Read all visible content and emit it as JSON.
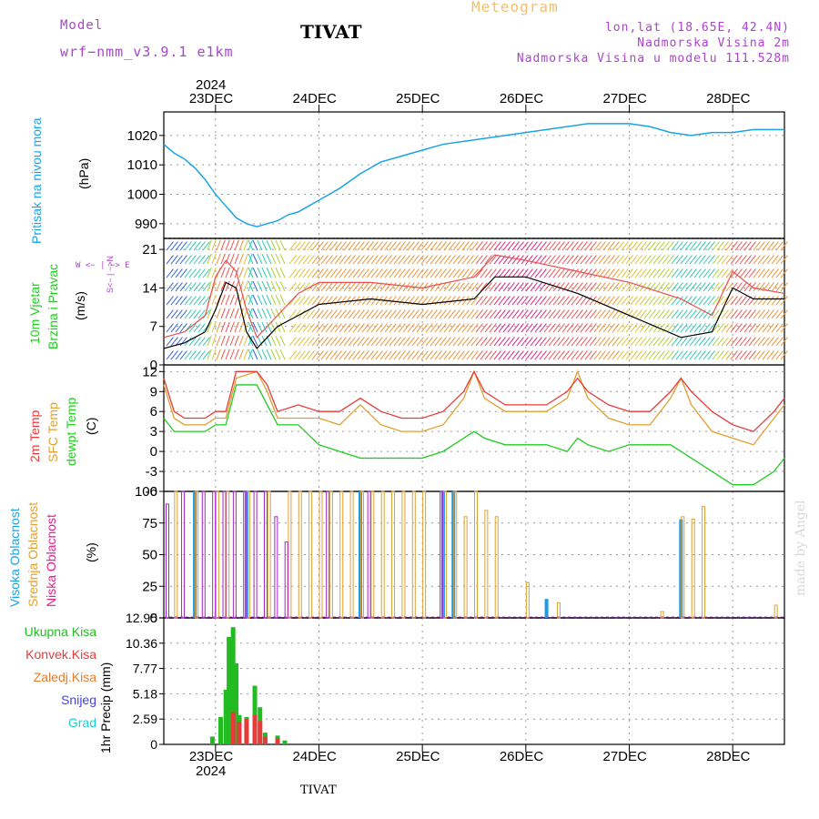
{
  "header": {
    "model_label": "Model",
    "model_name": "wrf−nmm_v3.9.1  e1km",
    "station": "TIVAT",
    "meteogram_label": "Meteogram",
    "coords": "lon,lat (18.65E, 42.4N)",
    "height": "Nadmorska Visina 2m",
    "model_height": "Nadmorska Visina u modelu 111.528m"
  },
  "timeaxis": {
    "year_top": "2024",
    "year_bottom": "2024",
    "days": [
      "23DEC",
      "24DEC",
      "25DEC",
      "26DEC",
      "27DEC",
      "28DEC"
    ],
    "start_day_offset": -0.5,
    "end_day_offset": 5.5
  },
  "footer": {
    "station": "TIVAT"
  },
  "watermark": "made by Angel",
  "colors": {
    "pressure": "#1aa3e8",
    "t2m": "#e83a3a",
    "tsfc": "#e0a030",
    "dewpt": "#22cc22",
    "high_cloud": "#1a9be8",
    "mid_cloud": "#e0a030",
    "low_cloud": "#aa22cc",
    "precip_total": "#22bb22",
    "precip_conv": "#e83a3a",
    "precip_frozen": "#e87b2a",
    "precip_snow": "#4444dd",
    "precip_hail": "#22cccc",
    "panel_label_violet": "#aa44cc"
  },
  "panels": {
    "pressure": {
      "label": "Pritisak na nivou mora",
      "unit": "(hPa)"
    },
    "wind": {
      "label1": "10m Vjetar",
      "label2": "Brzina i Pravac",
      "unit": "(m/s)",
      "compass": "W <− | −> E",
      "compass_vert": "S<− | −>N"
    },
    "temp": {
      "label1": "2m Temp",
      "label2": "SFC Temp",
      "label3": "dewpt Temp",
      "unit": "(C)"
    },
    "cloud": {
      "label1": "Visoka Oblacnost",
      "label2": "Srednja Oblacnost",
      "label3": "Niska Oblacnost",
      "unit": "(%)"
    },
    "precip": {
      "unit": "1hr Precip (mm)",
      "legend": [
        "Ukupna Kisa",
        "Konvek.Kisa",
        "Zaledj.Kisa",
        "Snijeg",
        "Grad"
      ]
    }
  },
  "chart_data": [
    {
      "type": "line",
      "title": "Pritisak na nivou mora",
      "ylabel": "(hPa)",
      "ylim": [
        985,
        1028
      ],
      "yticks": [
        990,
        1000,
        1010,
        1020
      ],
      "grid": true,
      "series": [
        {
          "name": "Pritisak na nivou mora",
          "x": [
            -0.5,
            -0.4,
            -0.3,
            -0.2,
            -0.1,
            0,
            0.1,
            0.2,
            0.3,
            0.4,
            0.5,
            0.6,
            0.7,
            0.8,
            0.9,
            1.0,
            1.2,
            1.4,
            1.6,
            1.8,
            2.0,
            2.2,
            2.4,
            2.6,
            2.8,
            3.0,
            3.2,
            3.4,
            3.6,
            3.8,
            4.0,
            4.2,
            4.4,
            4.6,
            4.8,
            5.0,
            5.2,
            5.5
          ],
          "y": [
            1017,
            1014,
            1012,
            1009,
            1005,
            1000,
            996,
            992,
            990,
            989,
            990,
            991,
            993,
            994,
            996,
            998,
            1002,
            1007,
            1011,
            1013,
            1015,
            1017,
            1018,
            1019,
            1020,
            1021,
            1022,
            1023,
            1024,
            1024,
            1024,
            1023,
            1021,
            1020,
            1021,
            1021,
            1022,
            1022
          ]
        }
      ]
    },
    {
      "type": "line",
      "title": "10m Vjetar Brzina i Pravac",
      "ylabel": "(m/s)",
      "ylim": [
        0,
        23
      ],
      "yticks": [
        0,
        7,
        14,
        21
      ],
      "grid": true,
      "series": [
        {
          "name": "10m Vjetar",
          "x": [
            -0.5,
            -0.3,
            -0.1,
            0,
            0.1,
            0.2,
            0.3,
            0.4,
            0.5,
            0.6,
            0.8,
            1.0,
            1.5,
            2.0,
            2.5,
            2.7,
            3.0,
            3.5,
            4.0,
            4.5,
            4.8,
            5.0,
            5.2,
            5.5
          ],
          "y": [
            3,
            4,
            6,
            10,
            15,
            14,
            6,
            3,
            5,
            7,
            9,
            11,
            12,
            11,
            12,
            16,
            16,
            13,
            9,
            5,
            6,
            14,
            12,
            12
          ]
        },
        {
          "name": "",
          "x": [
            -0.5,
            -0.3,
            -0.1,
            0,
            0.1,
            0.2,
            0.3,
            0.4,
            0.5,
            0.6,
            0.8,
            1.0,
            1.5,
            2.0,
            2.5,
            2.7,
            3.0,
            3.5,
            4.0,
            4.5,
            4.8,
            5.0,
            5.2,
            5.5
          ],
          "y": [
            5,
            6,
            9,
            16,
            19,
            17,
            10,
            5,
            7,
            9,
            13,
            15,
            15,
            14,
            16,
            20,
            19,
            17,
            15,
            12,
            9,
            17,
            14,
            13
          ]
        }
      ]
    },
    {
      "type": "line",
      "title": "Temp",
      "ylabel": "(C)",
      "ylim": [
        -6,
        13
      ],
      "yticks": [
        -6,
        -3,
        0,
        3,
        6,
        9,
        12
      ],
      "grid": true,
      "series": [
        {
          "name": "2m Temp",
          "x": [
            -0.5,
            -0.4,
            -0.3,
            -0.1,
            0,
            0.1,
            0.2,
            0.4,
            0.5,
            0.6,
            0.8,
            1.0,
            1.2,
            1.4,
            1.6,
            1.8,
            2.0,
            2.2,
            2.4,
            2.5,
            2.6,
            2.8,
            3.0,
            3.2,
            3.4,
            3.5,
            3.6,
            3.8,
            4.0,
            4.2,
            4.4,
            4.5,
            4.6,
            4.8,
            5.0,
            5.2,
            5.4,
            5.5
          ],
          "y": [
            11,
            6,
            5,
            5,
            6,
            6,
            12,
            12,
            10,
            6,
            7,
            6,
            6,
            8,
            6,
            5,
            5,
            6,
            9,
            12,
            9,
            7,
            7,
            7,
            9,
            11,
            9,
            7,
            6,
            6,
            9,
            11,
            9,
            6,
            4,
            3,
            6,
            8
          ]
        },
        {
          "name": "SFC Temp",
          "x": [
            -0.5,
            -0.4,
            -0.3,
            -0.1,
            0,
            0.1,
            0.2,
            0.4,
            0.5,
            0.6,
            0.8,
            1.0,
            1.2,
            1.4,
            1.6,
            1.8,
            2.0,
            2.2,
            2.4,
            2.5,
            2.6,
            2.8,
            3.0,
            3.2,
            3.4,
            3.5,
            3.6,
            3.8,
            4.0,
            4.2,
            4.4,
            4.5,
            4.6,
            4.8,
            5.0,
            5.2,
            5.4,
            5.5
          ],
          "y": [
            10,
            5,
            4,
            4,
            5,
            5,
            11,
            12,
            9,
            5,
            5,
            5,
            4,
            7,
            4,
            3,
            3,
            4,
            8,
            12,
            8,
            6,
            6,
            6,
            8,
            12,
            8,
            5,
            4,
            4,
            8,
            11,
            7,
            3,
            2,
            1,
            5,
            7
          ]
        },
        {
          "name": "dewpt Temp",
          "x": [
            -0.5,
            -0.4,
            -0.3,
            -0.1,
            0,
            0.1,
            0.2,
            0.4,
            0.5,
            0.6,
            0.8,
            1.0,
            1.2,
            1.4,
            1.6,
            1.8,
            2.0,
            2.2,
            2.4,
            2.5,
            2.6,
            2.8,
            3.0,
            3.2,
            3.4,
            3.5,
            3.6,
            3.8,
            4.0,
            4.2,
            4.4,
            4.5,
            4.6,
            4.8,
            5.0,
            5.2,
            5.4,
            5.5
          ],
          "y": [
            5,
            3,
            3,
            3,
            4,
            4,
            10,
            10,
            7,
            4,
            4,
            1,
            0,
            -1,
            -1,
            -1,
            -1,
            0,
            2,
            3,
            2,
            1,
            1,
            1,
            0,
            2,
            1,
            0,
            1,
            1,
            1,
            0,
            -1,
            -3,
            -5,
            -5,
            -3,
            -1
          ]
        }
      ]
    },
    {
      "type": "bar",
      "title": "Oblacnost",
      "ylabel": "(%)",
      "ylim": [
        0,
        100
      ],
      "yticks": [
        0,
        25,
        50,
        75,
        100
      ],
      "grid": true,
      "series": [
        {
          "name": "Visoka Oblacnost",
          "x": [
            -0.2,
            0.3,
            1.4,
            2.2,
            2.3,
            3.2,
            4.5
          ],
          "values": [
            100,
            100,
            100,
            100,
            100,
            15,
            78
          ]
        },
        {
          "name": "Srednja Oblacnost",
          "x": [
            -0.4,
            -0.2,
            0.0,
            0.1,
            0.3,
            0.5,
            0.7,
            0.8,
            0.9,
            1.0,
            1.1,
            1.2,
            1.3,
            1.4,
            1.5,
            1.6,
            1.7,
            1.8,
            1.9,
            2.0,
            2.2,
            2.3,
            2.4,
            2.5,
            2.6,
            2.7,
            3.0,
            3.3,
            4.3,
            4.5,
            4.6,
            4.7,
            5.4
          ],
          "values": [
            100,
            100,
            100,
            100,
            100,
            100,
            100,
            100,
            100,
            100,
            100,
            100,
            100,
            100,
            100,
            100,
            100,
            100,
            100,
            100,
            100,
            100,
            80,
            100,
            85,
            80,
            28,
            12,
            5,
            80,
            78,
            88,
            10
          ]
        },
        {
          "name": "Niska Oblacnost",
          "x": [
            -0.5,
            -0.35,
            -0.15,
            -0.05,
            0.05,
            0.15,
            0.25,
            0.35,
            0.45,
            0.55,
            0.65,
            1.05,
            1.45,
            2.15
          ],
          "values": [
            90,
            100,
            100,
            100,
            100,
            100,
            100,
            100,
            100,
            80,
            60,
            100,
            100,
            100
          ]
        }
      ]
    },
    {
      "type": "bar",
      "title": "1hr Precip",
      "ylabel": "1hr Precip (mm)",
      "ylim": [
        0,
        12.95
      ],
      "yticks": [
        0,
        2.59,
        5.18,
        7.77,
        10.36,
        12.95
      ],
      "grid": true,
      "series": [
        {
          "name": "Ukupna Kisa",
          "x": [
            -0.03,
            0.05,
            0.1,
            0.13,
            0.17,
            0.2,
            0.23,
            0.3,
            0.38,
            0.43,
            0.48,
            0.6,
            0.67
          ],
          "values": [
            0.8,
            2.8,
            5.6,
            11.0,
            12.0,
            8.3,
            3.0,
            2.8,
            6.0,
            3.8,
            1.2,
            0.9,
            0.4
          ]
        },
        {
          "name": "Konvek.Kisa",
          "x": [
            0.17,
            0.23,
            0.3,
            0.38,
            0.43,
            0.48,
            0.6
          ],
          "values": [
            3.3,
            2.3,
            2.6,
            3.0,
            2.4,
            0.8,
            0.6
          ]
        }
      ]
    }
  ]
}
